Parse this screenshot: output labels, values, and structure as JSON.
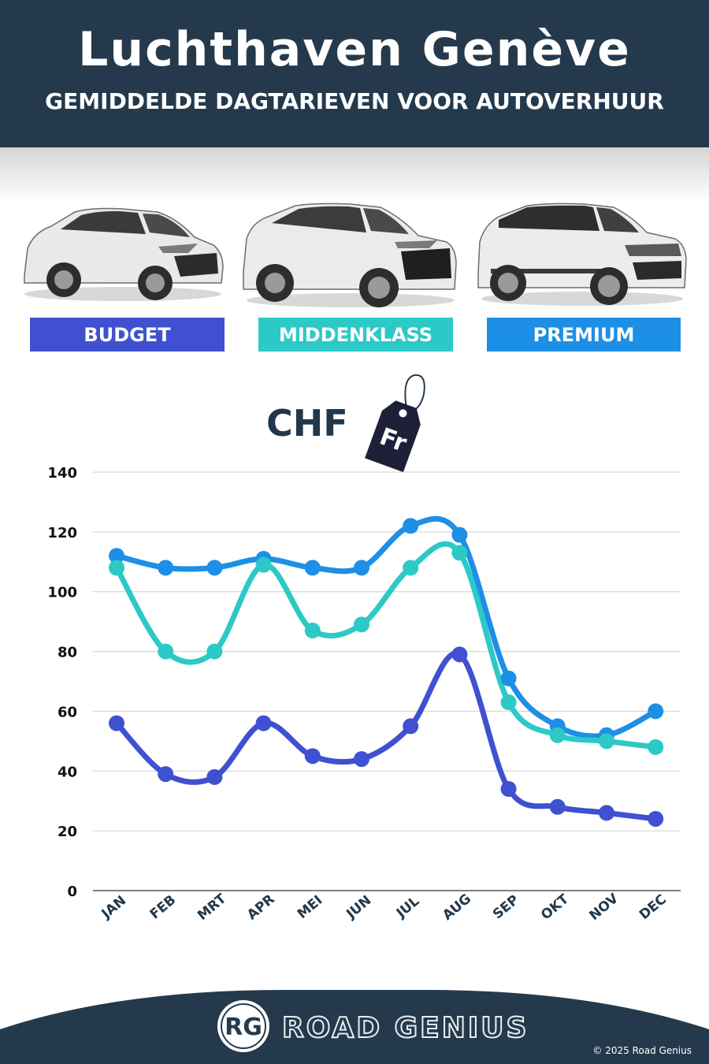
{
  "header": {
    "title": "Luchthaven Genève",
    "subtitle": "GEMIDDELDE DAGTARIEVEN VOOR AUTOVERHUUR"
  },
  "categories": {
    "budget": {
      "label": "BUDGET",
      "color": "#3f51d0"
    },
    "midden": {
      "label": "MIDDENKLASS",
      "color": "#2cc9c6"
    },
    "premium": {
      "label": "PREMIUM",
      "color": "#1e8fe6"
    }
  },
  "currency": {
    "code": "CHF",
    "tag_text": "Fr"
  },
  "chart_data": {
    "type": "line",
    "categories": [
      "JAN",
      "FEB",
      "MRT",
      "APR",
      "MEI",
      "JUN",
      "JUL",
      "AUG",
      "SEP",
      "OKT",
      "NOV",
      "DEC"
    ],
    "ylim": [
      0,
      140
    ],
    "yticks": [
      0,
      20,
      40,
      60,
      80,
      100,
      120,
      140
    ],
    "grid": true,
    "series": [
      {
        "name": "PREMIUM",
        "color": "#1e8fe6",
        "values": [
          112,
          108,
          108,
          111,
          108,
          108,
          122,
          119,
          71,
          55,
          52,
          60
        ]
      },
      {
        "name": "MIDDENKLASS",
        "color": "#2cc9c6",
        "values": [
          108,
          80,
          80,
          109,
          87,
          89,
          108,
          113,
          63,
          52,
          50,
          48
        ]
      },
      {
        "name": "BUDGET",
        "color": "#3f51d0",
        "values": [
          56,
          39,
          38,
          56,
          45,
          44,
          55,
          79,
          34,
          28,
          26,
          24
        ]
      }
    ]
  },
  "footer": {
    "logo_text": "RG",
    "brand": "ROAD GENIUS",
    "copyright": "© 2025 Road Genius"
  }
}
